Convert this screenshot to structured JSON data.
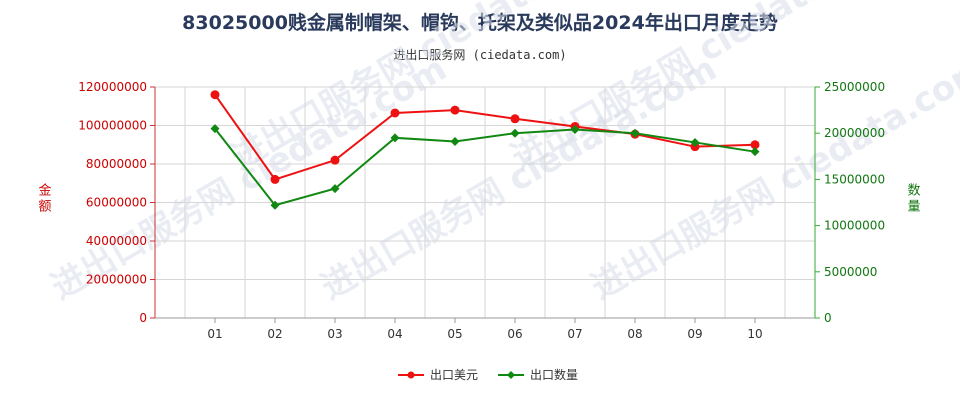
{
  "title": "83025000贱金属制帽架、帽钩、托架及类似品2024年出口月度走势",
  "subtitle": "进出口服务网 (ciedata.com)",
  "watermark": "进出口服务网 ciedata.com",
  "chart_data": {
    "type": "line",
    "categories": [
      "01",
      "02",
      "03",
      "04",
      "05",
      "06",
      "07",
      "08",
      "09",
      "10"
    ],
    "series": [
      {
        "name": "出口美元",
        "axis": "left",
        "color": "#ee1111",
        "marker": "circle",
        "values": [
          116000000,
          72000000,
          82000000,
          106500000,
          108000000,
          103500000,
          99500000,
          95500000,
          89000000,
          90000000
        ]
      },
      {
        "name": "出口数量",
        "axis": "right",
        "color": "#118811",
        "marker": "diamond",
        "values": [
          20500000,
          12200000,
          14000000,
          19500000,
          19100000,
          20000000,
          20400000,
          20000000,
          19000000,
          18000000
        ]
      }
    ],
    "y_left": {
      "label": "金额",
      "range": [
        0,
        120000000
      ],
      "ticks": [
        "0",
        "20000000",
        "40000000",
        "60000000",
        "80000000",
        "100000000",
        "120000000"
      ]
    },
    "y_right": {
      "label": "数量",
      "range": [
        0,
        25000000
      ],
      "ticks": [
        "0",
        "5000000",
        "10000000",
        "15000000",
        "20000000",
        "25000000"
      ]
    },
    "grid": true,
    "legend": "bottom-center"
  }
}
